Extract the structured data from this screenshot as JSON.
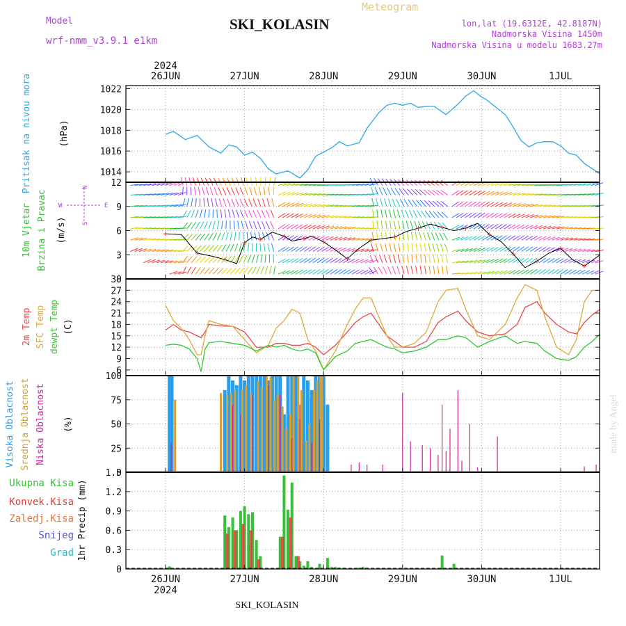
{
  "header": {
    "model_label": "Model",
    "model_name": "wrf-nmm_v3.9.1  e1km",
    "station": "SKI_KOLASIN",
    "title": "Meteogram",
    "lonlat": "lon,lat (19.6312E, 42.8187N)",
    "elevation": "Nadmorska Visina 1450m",
    "model_elevation": "Nadmorska Visina u modelu 1683.27m",
    "year": "2024",
    "footer_station": "SKI_KOLASIN",
    "watermark": "made by Angel"
  },
  "dates": [
    "26JUN",
    "27JUN",
    "28JUN",
    "29JUN",
    "30JUN",
    "1JUL"
  ],
  "panel_labels": {
    "pressure": [
      "Pritisak na nivou mora",
      "(hPa)"
    ],
    "wind": [
      "10m Vjetar",
      "Brzina i Pravac",
      "(m/s)"
    ],
    "compass": [
      "N",
      "E",
      "S",
      "W"
    ],
    "temp": [
      "2m Temp",
      "SFC Temp",
      "dewpt Temp",
      "(C)"
    ],
    "cloud": [
      "Visoka Oblacnost",
      "Srednja Oblacnost",
      "Niska Oblacnost",
      "(%)"
    ],
    "precip_axis": "1hr Precip (mm)",
    "precip_legend": [
      "Ukupna Kisa",
      "Konvek.Kisa",
      "Zaledj.Kisa",
      "Snijeg",
      "Grad"
    ]
  },
  "colors": {
    "model": "#b040d8",
    "title": "#e8c880",
    "info": "#b040d8",
    "pressure": "#2ba7e8",
    "wind_label": "#30c030",
    "temp2m": "#e84848",
    "sfc": "#e0a838",
    "dewpt": "#30c830",
    "cloud_high": "#2a9ee8",
    "cloud_mid": "#d8a030",
    "cloud_low": "#d0209a",
    "rain": "#38c038",
    "conv": "#e83838",
    "frz": "#f07030",
    "snow": "#5050e0",
    "grad": "#20c0c0"
  },
  "chart_data": [
    {
      "type": "line",
      "title": "Pritisak na nivou mora",
      "ylabel": "(hPa)",
      "ylim": [
        1013,
        1022.3
      ],
      "yticks": [
        1014,
        1016,
        1018,
        1020,
        1022
      ],
      "x_days": [
        0,
        0.1,
        0.25,
        0.4,
        0.55,
        0.7,
        0.8,
        0.9,
        1.0,
        1.1,
        1.2,
        1.3,
        1.4,
        1.45,
        1.55,
        1.7,
        1.8,
        1.9,
        2.0,
        2.1,
        2.2,
        2.3,
        2.45,
        2.55,
        2.7,
        2.8,
        2.9,
        3.0,
        3.1,
        3.2,
        3.3,
        3.4,
        3.55,
        3.7,
        3.8,
        3.9,
        4.0,
        4.05,
        4.15,
        4.3,
        4.4,
        4.5,
        4.6,
        4.7,
        4.8,
        4.9,
        5.0,
        5.1,
        5.2,
        5.3,
        5.4,
        5.5
      ],
      "values": [
        1017.6,
        1017.9,
        1017.1,
        1017.5,
        1016.4,
        1015.8,
        1016.6,
        1016.4,
        1015.6,
        1015.9,
        1015.3,
        1014.3,
        1013.8,
        1013.9,
        1014.1,
        1013.4,
        1014.2,
        1015.5,
        1015.9,
        1016.3,
        1016.9,
        1016.5,
        1016.8,
        1018.2,
        1019.7,
        1020.4,
        1020.6,
        1020.4,
        1020.6,
        1020.2,
        1020.3,
        1020.3,
        1019.5,
        1020.5,
        1021.3,
        1021.8,
        1021.2,
        1021.0,
        1020.4,
        1019.5,
        1018.3,
        1017.0,
        1016.4,
        1016.8,
        1016.9,
        1016.9,
        1016.5,
        1015.8,
        1015.6,
        1014.8,
        1014.3,
        1013.8
      ]
    },
    {
      "type": "line",
      "title": "10m Vjetar Brzina i Pravac",
      "ylabel": "(m/s)",
      "ylim": [
        0,
        12
      ],
      "yticks": [
        0,
        3,
        6,
        9,
        12
      ],
      "x_days": [
        0,
        0.2,
        0.4,
        0.6,
        0.75,
        0.9,
        1.0,
        1.1,
        1.2,
        1.35,
        1.5,
        1.6,
        1.75,
        1.85,
        2.0,
        2.15,
        2.3,
        2.45,
        2.6,
        2.75,
        2.9,
        3.05,
        3.2,
        3.35,
        3.5,
        3.65,
        3.8,
        3.95,
        4.1,
        4.25,
        4.4,
        4.55,
        4.7,
        4.85,
        5.0,
        5.15,
        5.3,
        5.5
      ],
      "values": [
        5.6,
        5.5,
        3.2,
        2.8,
        2.4,
        1.9,
        4.5,
        5.2,
        4.9,
        5.8,
        5.3,
        4.7,
        5.0,
        5.3,
        4.6,
        3.6,
        2.5,
        3.8,
        4.8,
        5.0,
        5.2,
        5.9,
        6.3,
        6.8,
        6.4,
        6.0,
        6.3,
        6.9,
        5.5,
        4.6,
        3.1,
        1.4,
        2.2,
        3.2,
        3.8,
        2.4,
        1.6,
        3.0
      ]
    },
    {
      "type": "line",
      "title": "2m Temp / SFC Temp / dewpt Temp",
      "ylabel": "(C)",
      "ylim": [
        4.5,
        30
      ],
      "yticks": [
        6,
        9,
        12,
        15,
        18,
        21,
        24,
        27,
        30
      ],
      "x_days": [
        0,
        0.1,
        0.2,
        0.3,
        0.4,
        0.45,
        0.5,
        0.55,
        0.7,
        0.85,
        1.0,
        1.15,
        1.3,
        1.4,
        1.5,
        1.6,
        1.7,
        1.8,
        1.9,
        2.0,
        2.15,
        2.3,
        2.4,
        2.5,
        2.6,
        2.7,
        2.8,
        2.9,
        3.0,
        3.15,
        3.3,
        3.45,
        3.55,
        3.7,
        3.8,
        3.95,
        4.1,
        4.3,
        4.45,
        4.55,
        4.7,
        4.8,
        4.95,
        5.1,
        5.2,
        5.3,
        5.4,
        5.5
      ],
      "series": [
        {
          "name": "2m Temp",
          "values": [
            16.5,
            18.0,
            16.5,
            16.0,
            15.0,
            14.5,
            16.0,
            18.0,
            17.6,
            17.5,
            16.0,
            12.0,
            12.0,
            13.0,
            13.0,
            12.5,
            12.5,
            13.0,
            12.0,
            10.0,
            12.5,
            16.0,
            18.5,
            20.0,
            21.0,
            18.0,
            15.0,
            13.5,
            12.0,
            12.0,
            13.5,
            18.5,
            20.0,
            21.5,
            19.0,
            16.0,
            15.0,
            15.5,
            18.0,
            22.5,
            24.0,
            21.0,
            18.0,
            16.0,
            15.5,
            18.5,
            20.5,
            22.0
          ]
        },
        {
          "name": "SFC Temp",
          "values": [
            23.0,
            19.0,
            17.0,
            14.0,
            10.0,
            10.0,
            15.0,
            19.0,
            18.0,
            17.5,
            14.0,
            10.5,
            12.5,
            17.0,
            19.0,
            22.0,
            21.0,
            14.0,
            11.0,
            6.0,
            11.0,
            18.0,
            22.0,
            25.0,
            25.0,
            20.0,
            15.0,
            12.0,
            12.0,
            13.0,
            16.0,
            24.0,
            27.0,
            27.5,
            22.0,
            15.0,
            14.0,
            18.0,
            25.0,
            28.5,
            27.0,
            20.0,
            12.0,
            10.0,
            14.0,
            24.0,
            27.0,
            27.0
          ]
        },
        {
          "name": "dewpt Temp",
          "values": [
            12.5,
            12.8,
            12.5,
            11.5,
            9.0,
            5.5,
            11.5,
            13.2,
            13.5,
            13.0,
            12.5,
            11.0,
            12.5,
            12.0,
            12.5,
            11.5,
            11.0,
            11.5,
            10.5,
            6.0,
            9.5,
            11.0,
            13.0,
            13.5,
            14.0,
            13.0,
            12.0,
            11.5,
            10.5,
            11.0,
            12.0,
            14.0,
            14.0,
            15.0,
            14.5,
            12.0,
            13.5,
            15.0,
            13.0,
            13.5,
            13.0,
            11.0,
            9.0,
            8.5,
            9.5,
            12.0,
            13.5,
            15.5
          ]
        }
      ]
    },
    {
      "type": "bar",
      "title": "Visoka / Srednja / Niska Oblacnost",
      "ylabel": "(%)",
      "ylim": [
        0,
        100
      ],
      "yticks": [
        0,
        25,
        50,
        75,
        100
      ],
      "series": [
        {
          "name": "Visoka Oblacnost",
          "x_days": [
            0.05,
            0.08,
            0.75,
            0.8,
            0.85,
            0.9,
            0.95,
            1.0,
            1.05,
            1.1,
            1.15,
            1.2,
            1.25,
            1.3,
            1.35,
            1.4,
            1.45,
            1.5,
            1.55,
            1.6,
            1.65,
            1.7,
            1.75,
            1.8,
            1.85,
            1.9,
            1.95,
            2.0,
            2.05
          ],
          "values": [
            100,
            100,
            85,
            100,
            95,
            90,
            100,
            95,
            100,
            100,
            100,
            100,
            100,
            95,
            100,
            100,
            100,
            60,
            100,
            100,
            100,
            55,
            100,
            95,
            85,
            100,
            100,
            100,
            70
          ]
        },
        {
          "name": "Srednja Oblacnost",
          "x_days": [
            0.12,
            0.7,
            0.78,
            0.83,
            0.88,
            0.97,
            1.02,
            1.08,
            1.17,
            1.22,
            1.28,
            1.33,
            1.38,
            1.42,
            1.48,
            1.53,
            1.58,
            1.62,
            1.68,
            1.72,
            1.78,
            1.82,
            1.88,
            1.92,
            1.96,
            1.98
          ],
          "values": [
            75,
            82,
            80,
            82,
            85,
            85,
            90,
            82,
            95,
            88,
            100,
            98,
            75,
            80,
            68,
            45,
            60,
            100,
            100,
            85,
            33,
            50,
            85,
            95,
            100,
            100
          ]
        },
        {
          "name": "Niska Oblacnost",
          "x_days": [
            0.07,
            0.85,
            0.95,
            1.1,
            1.3,
            1.45,
            1.6,
            1.7,
            1.85,
            1.95,
            2.35,
            2.45,
            2.55,
            2.75,
            3.0,
            3.1,
            3.25,
            3.35,
            3.45,
            3.5,
            3.55,
            3.6,
            3.7,
            3.75,
            3.85,
            3.95,
            4.2,
            5.3,
            5.45
          ],
          "values": [
            30,
            70,
            60,
            80,
            90,
            80,
            35,
            70,
            30,
            55,
            8,
            10,
            8,
            8,
            82,
            32,
            28,
            25,
            18,
            70,
            22,
            45,
            85,
            12,
            50,
            5,
            37,
            6,
            8
          ]
        }
      ]
    },
    {
      "type": "bar",
      "title": "1hr Precip",
      "ylabel": "1hr Precip (mm)",
      "ylim": [
        0,
        1.5
      ],
      "yticks": [
        0,
        0.3,
        0.6,
        0.9,
        1.2,
        1.5
      ],
      "series": [
        {
          "name": "Ukupna Kisa",
          "x_days": [
            0.05,
            0.75,
            0.8,
            0.85,
            0.9,
            0.95,
            1.0,
            1.05,
            1.1,
            1.15,
            1.2,
            1.45,
            1.5,
            1.55,
            1.6,
            1.65,
            1.7,
            1.75,
            1.8,
            1.85,
            1.95,
            2.05,
            2.1,
            2.15,
            2.2,
            2.25,
            2.45,
            2.5,
            2.55,
            3.5,
            3.65
          ],
          "values": [
            0.04,
            0.83,
            0.65,
            0.8,
            0.6,
            0.9,
            0.97,
            0.85,
            0.88,
            0.45,
            0.2,
            0.5,
            1.45,
            0.92,
            1.34,
            0.2,
            0.12,
            0.05,
            0.12,
            0.03,
            0.08,
            0.17,
            0.03,
            0.03,
            0.02,
            0.02,
            0.02,
            0.03,
            0.02,
            0.21,
            0.08
          ]
        },
        {
          "name": "Konvek.Kisa",
          "x_days": [
            0.78,
            0.88,
            0.98,
            1.08,
            1.18,
            1.48,
            1.58,
            1.68
          ],
          "values": [
            0.55,
            0.6,
            0.7,
            0.6,
            0.15,
            0.5,
            0.8,
            0.2
          ]
        },
        {
          "name": "Zaledj.Kisa",
          "x_days": [],
          "values": []
        },
        {
          "name": "Snijeg",
          "x_days": [],
          "values": []
        },
        {
          "name": "Grad",
          "x_days": [],
          "values": []
        }
      ]
    }
  ]
}
